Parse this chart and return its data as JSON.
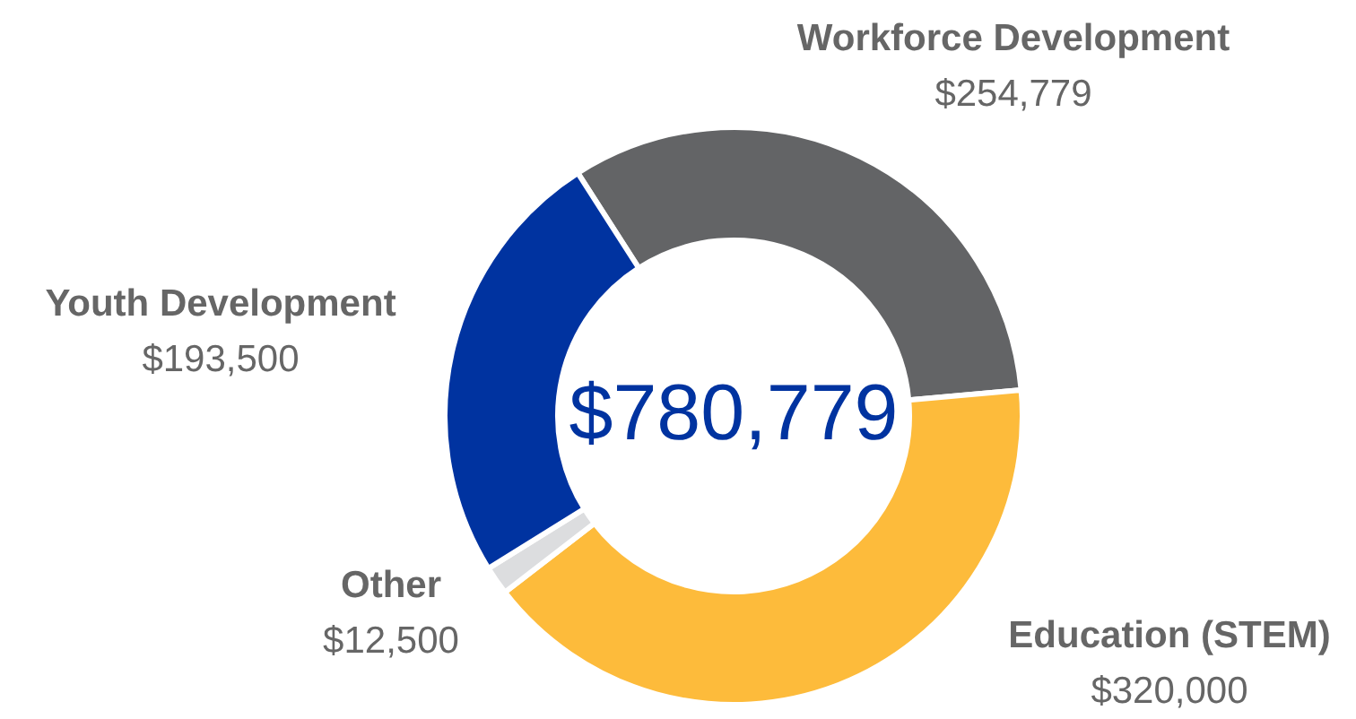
{
  "chart_data": {
    "type": "donut",
    "categories": [
      "Workforce Development",
      "Education (STEM)",
      "Other",
      "Youth Development"
    ],
    "values": [
      254779,
      320000,
      12500,
      193500
    ],
    "colors": [
      "#636466",
      "#fdbb3b",
      "#dcdddf",
      "#0033a0"
    ],
    "value_labels": [
      "$254,779",
      "$320,000",
      "$12,500",
      "$193,500"
    ],
    "annotations": [
      "$780,779"
    ]
  }
}
